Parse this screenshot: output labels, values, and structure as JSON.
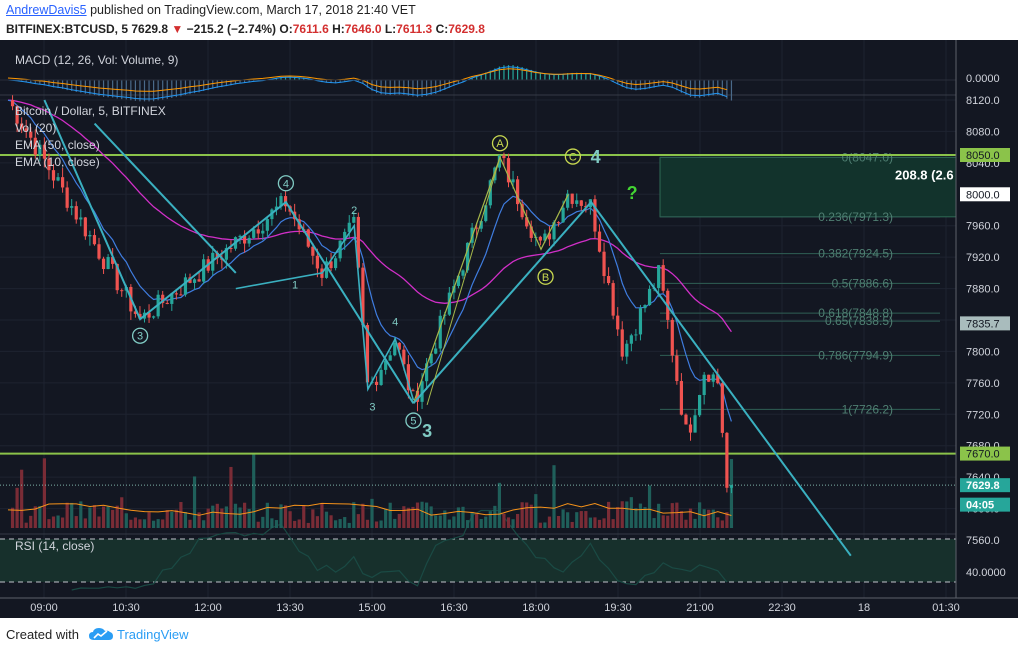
{
  "header": {
    "author": "AndrewDavis5",
    "published_text": " published on TradingView.com, March 17, 2018 21:40 VET",
    "symbol_line": "BITFINEX:BTCUSD, 5",
    "last_price": "7629.8",
    "arrow": "▼",
    "change": "−215.2 (−2.74%)",
    "o_label": "O:",
    "o_val": "7611.6",
    "h_label": "H:",
    "h_val": "7646.0",
    "l_label": "L:",
    "l_val": "7611.3",
    "c_label": "C:",
    "c_val": "7629.8"
  },
  "panes": {
    "macd_label": "MACD (12, 26, Vol: Volume, 9)",
    "macd_value": "0.0000",
    "main_title": "Bitcoin / Dollar, 5, BITFINEX",
    "vol_label": "Vol (20)",
    "ema50_label": "EMA (50, close)",
    "ema10_label": "EMA (10, close)",
    "rsi_label": "RSI (14, close)",
    "rsi_value": "40.0000"
  },
  "price_axis": {
    "ticks": [
      "8120.0",
      "8080.0",
      "8040.0",
      "8000.0",
      "7960.0",
      "7920.0",
      "7880.0",
      "7840.0",
      "7800.0",
      "7760.0",
      "7720.0",
      "7680.0",
      "7640.0",
      "7600.0",
      "7560.0"
    ],
    "badges": [
      {
        "label": "8050.0",
        "value": 8050.0,
        "kind": "level"
      },
      {
        "label": "8000.0",
        "value": 8000.0,
        "kind": "white"
      },
      {
        "label": "7835.7",
        "value": 7835.7,
        "kind": "gray"
      },
      {
        "label": "7670.0",
        "value": 7670.0,
        "kind": "level"
      },
      {
        "label": "7629.8",
        "value": 7629.8,
        "kind": "price"
      },
      {
        "label": "04:05",
        "value": 7605.0,
        "kind": "price"
      }
    ]
  },
  "time_axis": [
    "09:00",
    "10:30",
    "12:00",
    "13:30",
    "15:00",
    "16:30",
    "18:00",
    "19:30",
    "21:00",
    "22:30",
    "18",
    "01:30"
  ],
  "fib_levels": [
    {
      "label": "0(8047.0)",
      "value": 8047.0
    },
    {
      "label": "0.236(7971.3)",
      "value": 7971.3
    },
    {
      "label": "0.382(7924.5)",
      "value": 7924.5
    },
    {
      "label": "0.5(7886.6)",
      "value": 7886.6
    },
    {
      "label": "0.618(7848.8)",
      "value": 7848.8
    },
    {
      "label": "0.65(7838.5)",
      "value": 7838.5
    },
    {
      "label": "0.786(7794.9)",
      "value": 7794.9
    },
    {
      "label": "1(7726.2)",
      "value": 7726.2
    }
  ],
  "range_label": "208.8 (2.6",
  "wave_labels": [
    {
      "text": "3",
      "circled": true
    },
    {
      "text": "4",
      "circled": true
    },
    {
      "text": "2",
      "circled": false
    },
    {
      "text": "1",
      "circled": false
    },
    {
      "text": "4",
      "circled": false
    },
    {
      "text": "3",
      "circled": false
    },
    {
      "text": "5",
      "circled": true
    },
    {
      "text": "3",
      "circled": false
    },
    {
      "text": "A",
      "circled": true
    },
    {
      "text": "B",
      "circled": true
    },
    {
      "text": "C",
      "circled": true
    },
    {
      "text": "4",
      "circled": false
    },
    {
      "text": "?",
      "circled": false
    }
  ],
  "footer": {
    "created": "Created with",
    "brand": "TradingView"
  },
  "colors": {
    "background": "#131722",
    "up": "#26a69a",
    "down": "#ef5350",
    "ema50": "#d12fc8",
    "ema10": "#3f7de0",
    "level": "#8bc34a",
    "trend": "#3ab0c0",
    "wave": "#80cbc4",
    "abc": "#c8d850",
    "question": "#43d433"
  },
  "chart_data": [
    {
      "type": "candlestick",
      "title": "Bitcoin / Dollar, 5, BITFINEX",
      "x": [
        "09:00",
        "10:30",
        "12:00",
        "13:30",
        "15:00",
        "16:30",
        "18:00",
        "19:30",
        "21:00",
        "22:30"
      ],
      "ylim": [
        7540,
        8130
      ],
      "key_points": [
        {
          "t": "08:25",
          "price": 8120
        },
        {
          "t": "10:50",
          "price": 7840
        },
        {
          "t": "13:30",
          "price": 7990
        },
        {
          "t": "14:10",
          "price": 7900
        },
        {
          "t": "14:45",
          "price": 7960
        },
        {
          "t": "15:00",
          "price": 7750
        },
        {
          "t": "15:30",
          "price": 7815
        },
        {
          "t": "15:50",
          "price": 7735
        },
        {
          "t": "17:25",
          "price": 8047
        },
        {
          "t": "18:10",
          "price": 7930
        },
        {
          "t": "18:40",
          "price": 8003
        },
        {
          "t": "19:05",
          "price": 7985
        },
        {
          "t": "19:40",
          "price": 7800
        },
        {
          "t": "20:20",
          "price": 7900
        },
        {
          "t": "20:50",
          "price": 7690
        },
        {
          "t": "21:10",
          "price": 7780
        },
        {
          "t": "21:25",
          "price": 7760
        },
        {
          "t": "21:35",
          "price": 7611
        },
        {
          "t": "21:40",
          "price": 7629.8
        }
      ],
      "levels": [
        8050.0,
        7670.0
      ],
      "last": 7629.8
    }
  ]
}
